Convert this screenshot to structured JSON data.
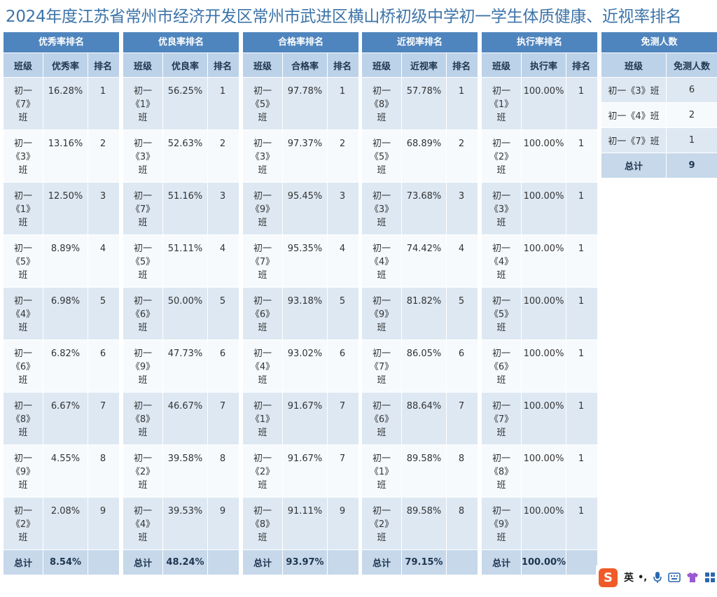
{
  "title": "2024年度江苏省常州市经济开发区常州市武进区横山桥初级中学初一学生体质健康、近视率排名",
  "col_headers": {
    "class": "班级",
    "rank": "排名",
    "total": "总计"
  },
  "panels": [
    {
      "header": "优秀率排名",
      "metric": "优秀率",
      "total": "8.54%",
      "rows": [
        {
          "cls": "初一\n《7》\n班",
          "val": "16.28%",
          "rank": "1"
        },
        {
          "cls": "初一\n《3》\n班",
          "val": "13.16%",
          "rank": "2"
        },
        {
          "cls": "初一\n《1》\n班",
          "val": "12.50%",
          "rank": "3"
        },
        {
          "cls": "初一\n《5》\n班",
          "val": "8.89%",
          "rank": "4"
        },
        {
          "cls": "初一\n《4》\n班",
          "val": "6.98%",
          "rank": "5"
        },
        {
          "cls": "初一\n《6》\n班",
          "val": "6.82%",
          "rank": "6"
        },
        {
          "cls": "初一\n《8》\n班",
          "val": "6.67%",
          "rank": "7"
        },
        {
          "cls": "初一\n《9》\n班",
          "val": "4.55%",
          "rank": "8"
        },
        {
          "cls": "初一\n《2》\n班",
          "val": "2.08%",
          "rank": "9"
        }
      ]
    },
    {
      "header": "优良率排名",
      "metric": "优良率",
      "total": "48.24%",
      "rows": [
        {
          "cls": "初一\n《1》\n班",
          "val": "56.25%",
          "rank": "1"
        },
        {
          "cls": "初一\n《3》\n班",
          "val": "52.63%",
          "rank": "2"
        },
        {
          "cls": "初一\n《7》\n班",
          "val": "51.16%",
          "rank": "3"
        },
        {
          "cls": "初一\n《5》\n班",
          "val": "51.11%",
          "rank": "4"
        },
        {
          "cls": "初一\n《6》\n班",
          "val": "50.00%",
          "rank": "5"
        },
        {
          "cls": "初一\n《9》\n班",
          "val": "47.73%",
          "rank": "6"
        },
        {
          "cls": "初一\n《8》\n班",
          "val": "46.67%",
          "rank": "7"
        },
        {
          "cls": "初一\n《2》\n班",
          "val": "39.58%",
          "rank": "8"
        },
        {
          "cls": "初一\n《4》\n班",
          "val": "39.53%",
          "rank": "9"
        }
      ]
    },
    {
      "header": "合格率排名",
      "metric": "合格率",
      "total": "93.97%",
      "rows": [
        {
          "cls": "初一\n《5》\n班",
          "val": "97.78%",
          "rank": "1"
        },
        {
          "cls": "初一\n《3》\n班",
          "val": "97.37%",
          "rank": "2"
        },
        {
          "cls": "初一\n《9》\n班",
          "val": "95.45%",
          "rank": "3"
        },
        {
          "cls": "初一\n《7》\n班",
          "val": "95.35%",
          "rank": "4"
        },
        {
          "cls": "初一\n《6》\n班",
          "val": "93.18%",
          "rank": "5"
        },
        {
          "cls": "初一\n《4》\n班",
          "val": "93.02%",
          "rank": "6"
        },
        {
          "cls": "初一\n《1》\n班",
          "val": "91.67%",
          "rank": "7"
        },
        {
          "cls": "初一\n《2》\n班",
          "val": "91.67%",
          "rank": "7"
        },
        {
          "cls": "初一\n《8》\n班",
          "val": "91.11%",
          "rank": "9"
        }
      ]
    },
    {
      "header": "近视率排名",
      "metric": "近视率",
      "total": "79.15%",
      "rows": [
        {
          "cls": "初一\n《8》\n班",
          "val": "57.78%",
          "rank": "1"
        },
        {
          "cls": "初一\n《5》\n班",
          "val": "68.89%",
          "rank": "2"
        },
        {
          "cls": "初一\n《3》\n班",
          "val": "73.68%",
          "rank": "3"
        },
        {
          "cls": "初一\n《4》\n班",
          "val": "74.42%",
          "rank": "4"
        },
        {
          "cls": "初一\n《9》\n班",
          "val": "81.82%",
          "rank": "5"
        },
        {
          "cls": "初一\n《7》\n班",
          "val": "86.05%",
          "rank": "6"
        },
        {
          "cls": "初一\n《6》\n班",
          "val": "88.64%",
          "rank": "7"
        },
        {
          "cls": "初一\n《1》\n班",
          "val": "89.58%",
          "rank": "8"
        },
        {
          "cls": "初一\n《2》\n班",
          "val": "89.58%",
          "rank": "8"
        }
      ]
    },
    {
      "header": "执行率排名",
      "metric": "执行率",
      "total": "100.00%",
      "rows": [
        {
          "cls": "初一\n《1》\n班",
          "val": "100.00%",
          "rank": "1"
        },
        {
          "cls": "初一\n《2》\n班",
          "val": "100.00%",
          "rank": "1"
        },
        {
          "cls": "初一\n《3》\n班",
          "val": "100.00%",
          "rank": "1"
        },
        {
          "cls": "初一\n《4》\n班",
          "val": "100.00%",
          "rank": "1"
        },
        {
          "cls": "初一\n《5》\n班",
          "val": "100.00%",
          "rank": "1"
        },
        {
          "cls": "初一\n《6》\n班",
          "val": "100.00%",
          "rank": "1"
        },
        {
          "cls": "初一\n《7》\n班",
          "val": "100.00%",
          "rank": "1"
        },
        {
          "cls": "初一\n《8》\n班",
          "val": "100.00%",
          "rank": "1"
        },
        {
          "cls": "初一\n《9》\n班",
          "val": "100.00%",
          "rank": "1"
        }
      ]
    }
  ],
  "exempt": {
    "header": "免测人数",
    "col_class": "班级",
    "col_count": "免测人数",
    "rows": [
      {
        "cls": "初一《3》班",
        "count": "6"
      },
      {
        "cls": "初一《4》班",
        "count": "2"
      },
      {
        "cls": "初一《7》班",
        "count": "1"
      }
    ],
    "total_label": "总计",
    "total": "9"
  },
  "ime": {
    "logo": "S",
    "lang": "英",
    "punct": "•,",
    "icons": [
      "microphone-icon",
      "keyboard-icon",
      "skin-icon",
      "toolbox-icon"
    ],
    "logo_color": "#f05a28"
  },
  "colors": {
    "title": "#3d74a8",
    "header_dark": "#4f85be",
    "header_light": "#bcd2e8",
    "row_alt": "#dde8f3",
    "row_light": "#f7fafd",
    "total_row": "#c6d8ea"
  }
}
